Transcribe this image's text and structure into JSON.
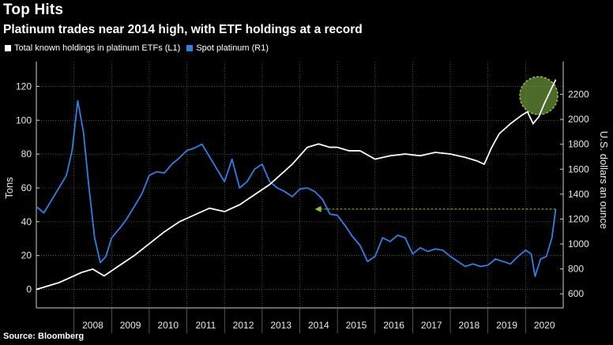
{
  "header": {
    "title": "Top Hits",
    "subtitle": "Platinum trades near 2014 high, with ETF holdings at a record"
  },
  "source": "Source: Bloomberg",
  "colors": {
    "background": "#000000",
    "etf_series": "#ffffff",
    "spot_series": "#2f80e6",
    "highlight": "#8bc34a",
    "grid": "#7a7a7a"
  },
  "chart_data": {
    "type": "line",
    "title": "Platinum trades near 2014 high, with ETF holdings at a record",
    "xlabel": "",
    "ylabel_left": "Tons",
    "ylabel_right": "U.S. dollars an ounce",
    "x_range": [
      2007.0,
      2021.0
    ],
    "x_tick_labels": [
      "2008",
      "2009",
      "2010",
      "2011",
      "2012",
      "2013",
      "2014",
      "2015",
      "2016",
      "2017",
      "2018",
      "2019",
      "2020"
    ],
    "x_tick_positions": [
      2008.0,
      2009.0,
      2010.0,
      2011.0,
      2012.0,
      2013.0,
      2014.0,
      2015.0,
      2016.0,
      2017.0,
      2018.0,
      2019.0,
      2020.0
    ],
    "ylim_left": [
      -10,
      130
    ],
    "yticks_left": [
      0,
      20,
      40,
      60,
      80,
      100,
      120
    ],
    "ylim_right": [
      500,
      2400
    ],
    "yticks_right": [
      600,
      800,
      1000,
      1200,
      1400,
      1600,
      1800,
      2000,
      2200
    ],
    "grid": true,
    "legend_position": "top-left",
    "series": [
      {
        "name": "Total known holdings in platinum ETFs (L1)",
        "axis": "left",
        "color": "#ffffff",
        "x": [
          2007.0,
          2007.3,
          2007.6,
          2007.9,
          2008.2,
          2008.5,
          2008.8,
          2009.2,
          2009.6,
          2010.0,
          2010.4,
          2010.8,
          2011.2,
          2011.6,
          2012.0,
          2012.4,
          2012.8,
          2013.2,
          2013.5,
          2013.8,
          2014.0,
          2014.2,
          2014.5,
          2014.8,
          2015.0,
          2015.3,
          2015.6,
          2016.0,
          2016.4,
          2016.8,
          2017.2,
          2017.6,
          2018.0,
          2018.4,
          2018.7,
          2018.9,
          2019.1,
          2019.3,
          2019.6,
          2019.9,
          2020.05,
          2020.2,
          2020.35,
          2020.5,
          2020.65,
          2020.8
        ],
        "values": [
          0,
          2,
          4,
          7,
          10,
          12,
          8,
          14,
          20,
          27,
          34,
          40,
          44,
          48,
          46,
          50,
          56,
          62,
          68,
          74,
          79,
          84,
          86,
          84,
          84,
          82,
          82,
          77,
          79,
          80,
          79,
          81,
          80,
          78,
          76,
          74,
          84,
          92,
          98,
          103,
          105,
          98,
          102,
          110,
          117,
          124
        ]
      },
      {
        "name": "Spot platinum (R1)",
        "axis": "right",
        "color": "#2f80e6",
        "x": [
          2007.0,
          2007.2,
          2007.4,
          2007.6,
          2007.8,
          2007.95,
          2008.1,
          2008.25,
          2008.4,
          2008.55,
          2008.7,
          2008.85,
          2009.0,
          2009.2,
          2009.4,
          2009.6,
          2009.8,
          2010.0,
          2010.2,
          2010.4,
          2010.6,
          2010.8,
          2011.0,
          2011.2,
          2011.4,
          2011.6,
          2011.8,
          2012.0,
          2012.2,
          2012.4,
          2012.6,
          2012.8,
          2013.0,
          2013.2,
          2013.4,
          2013.6,
          2013.8,
          2014.0,
          2014.2,
          2014.4,
          2014.6,
          2014.8,
          2015.0,
          2015.2,
          2015.4,
          2015.6,
          2015.8,
          2016.0,
          2016.2,
          2016.4,
          2016.6,
          2016.8,
          2017.0,
          2017.2,
          2017.4,
          2017.6,
          2017.8,
          2018.0,
          2018.2,
          2018.4,
          2018.6,
          2018.8,
          2019.0,
          2019.2,
          2019.4,
          2019.6,
          2019.8,
          2020.0,
          2020.15,
          2020.25,
          2020.4,
          2020.55,
          2020.7,
          2020.8
        ],
        "values": [
          1300,
          1250,
          1350,
          1450,
          1550,
          1750,
          2150,
          1900,
          1450,
          1050,
          850,
          900,
          1050,
          1120,
          1200,
          1300,
          1400,
          1550,
          1580,
          1570,
          1640,
          1690,
          1750,
          1770,
          1800,
          1700,
          1600,
          1500,
          1680,
          1450,
          1500,
          1600,
          1640,
          1500,
          1450,
          1420,
          1380,
          1440,
          1450,
          1420,
          1360,
          1240,
          1230,
          1150,
          1060,
          990,
          860,
          900,
          1050,
          1020,
          1070,
          1050,
          920,
          970,
          940,
          960,
          950,
          900,
          860,
          820,
          840,
          820,
          830,
          880,
          860,
          840,
          900,
          950,
          920,
          740,
          880,
          900,
          1050,
          1280
        ]
      }
    ],
    "annotations": [
      {
        "type": "arrow",
        "label": "",
        "from": [
          2020.8,
          1280
        ],
        "to": [
          2014.4,
          1280
        ],
        "color": "#8bc34a"
      },
      {
        "type": "circle",
        "label": "",
        "center": [
          2020.35,
          2190
        ],
        "color": "#8bc34a"
      }
    ]
  }
}
